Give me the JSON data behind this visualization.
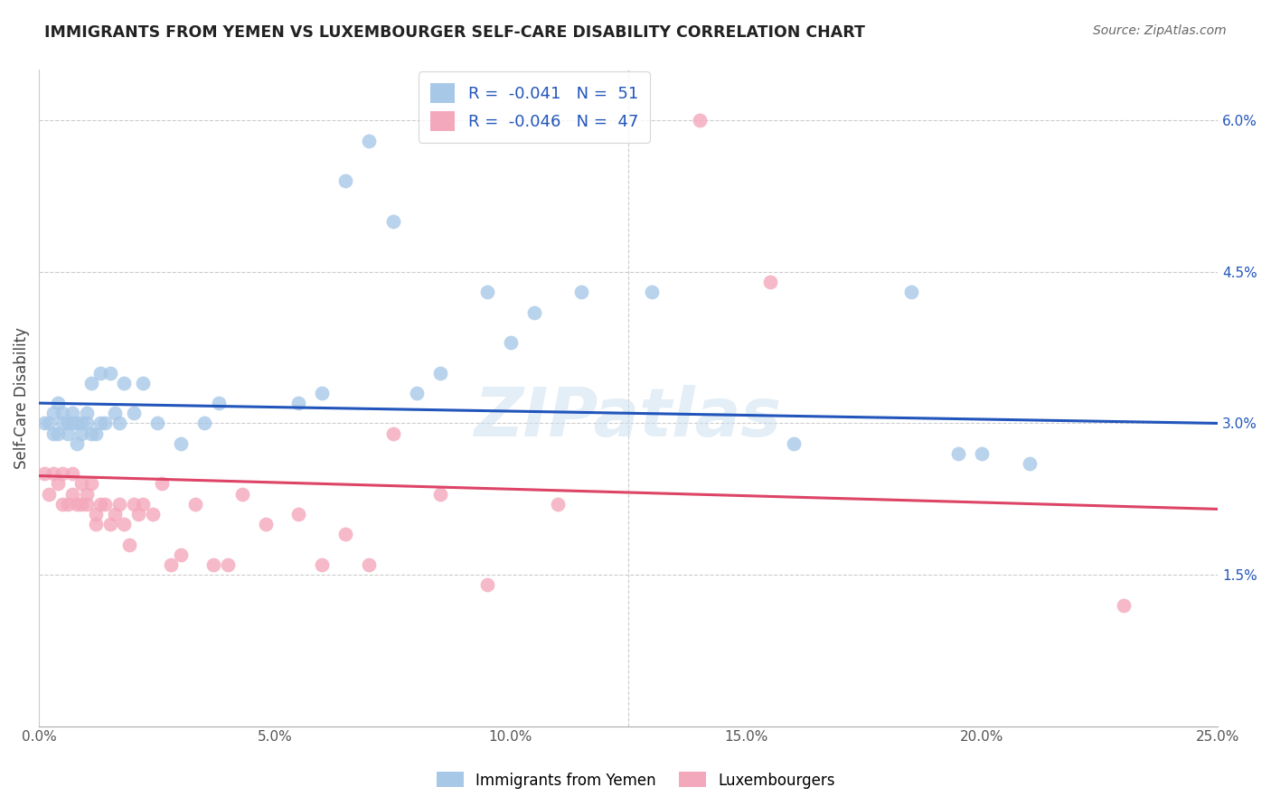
{
  "title": "IMMIGRANTS FROM YEMEN VS LUXEMBOURGER SELF-CARE DISABILITY CORRELATION CHART",
  "source": "Source: ZipAtlas.com",
  "xlabel_tick_vals": [
    0.0,
    0.05,
    0.1,
    0.15,
    0.2,
    0.25
  ],
  "ylabel": "Self-Care Disability",
  "ylabel_tick_vals": [
    0.0,
    0.015,
    0.03,
    0.045,
    0.06
  ],
  "xlim": [
    0.0,
    0.25
  ],
  "ylim": [
    0.0,
    0.065
  ],
  "right_ytick_vals": [
    0.015,
    0.03,
    0.045,
    0.06
  ],
  "right_ytick_labels": [
    "1.5%",
    "3.0%",
    "4.5%",
    "6.0%"
  ],
  "legend_r1_val": "-0.041",
  "legend_n1_val": "51",
  "legend_r2_val": "-0.046",
  "legend_n2_val": "47",
  "color_blue": "#a8c8e8",
  "color_pink": "#f4a8bc",
  "line_color_blue": "#2255bb",
  "line_color_pink": "#dd4466",
  "legend_text_color": "#2255bb",
  "blue_scatter_x": [
    0.001,
    0.002,
    0.003,
    0.003,
    0.004,
    0.004,
    0.005,
    0.005,
    0.006,
    0.006,
    0.007,
    0.007,
    0.008,
    0.008,
    0.009,
    0.009,
    0.01,
    0.01,
    0.011,
    0.011,
    0.012,
    0.013,
    0.013,
    0.014,
    0.015,
    0.016,
    0.017,
    0.018,
    0.02,
    0.022,
    0.025,
    0.03,
    0.035,
    0.038,
    0.055,
    0.06,
    0.065,
    0.07,
    0.075,
    0.08,
    0.085,
    0.095,
    0.1,
    0.105,
    0.115,
    0.13,
    0.16,
    0.185,
    0.195,
    0.2,
    0.21
  ],
  "blue_scatter_y": [
    0.03,
    0.03,
    0.031,
    0.029,
    0.032,
    0.029,
    0.03,
    0.031,
    0.029,
    0.03,
    0.03,
    0.031,
    0.028,
    0.03,
    0.029,
    0.03,
    0.03,
    0.031,
    0.029,
    0.034,
    0.029,
    0.03,
    0.035,
    0.03,
    0.035,
    0.031,
    0.03,
    0.034,
    0.031,
    0.034,
    0.03,
    0.028,
    0.03,
    0.032,
    0.032,
    0.033,
    0.054,
    0.058,
    0.05,
    0.033,
    0.035,
    0.043,
    0.038,
    0.041,
    0.043,
    0.043,
    0.028,
    0.043,
    0.027,
    0.027,
    0.026
  ],
  "pink_scatter_x": [
    0.001,
    0.002,
    0.003,
    0.004,
    0.005,
    0.005,
    0.006,
    0.007,
    0.007,
    0.008,
    0.009,
    0.009,
    0.01,
    0.01,
    0.011,
    0.012,
    0.012,
    0.013,
    0.014,
    0.015,
    0.016,
    0.017,
    0.018,
    0.019,
    0.02,
    0.021,
    0.022,
    0.024,
    0.026,
    0.028,
    0.03,
    0.033,
    0.037,
    0.04,
    0.043,
    0.048,
    0.055,
    0.06,
    0.065,
    0.07,
    0.075,
    0.085,
    0.095,
    0.11,
    0.14,
    0.155,
    0.23
  ],
  "pink_scatter_y": [
    0.025,
    0.023,
    0.025,
    0.024,
    0.022,
    0.025,
    0.022,
    0.025,
    0.023,
    0.022,
    0.024,
    0.022,
    0.023,
    0.022,
    0.024,
    0.021,
    0.02,
    0.022,
    0.022,
    0.02,
    0.021,
    0.022,
    0.02,
    0.018,
    0.022,
    0.021,
    0.022,
    0.021,
    0.024,
    0.016,
    0.017,
    0.022,
    0.016,
    0.016,
    0.023,
    0.02,
    0.021,
    0.016,
    0.019,
    0.016,
    0.029,
    0.023,
    0.014,
    0.022,
    0.06,
    0.044,
    0.012
  ],
  "blue_trend_x0": 0.0,
  "blue_trend_y0": 0.032,
  "blue_trend_x1": 0.25,
  "blue_trend_y1": 0.03,
  "pink_trend_x0": 0.0,
  "pink_trend_y0": 0.0248,
  "pink_trend_x1": 0.25,
  "pink_trend_y1": 0.0215,
  "watermark": "ZIPatlas",
  "legend_label_blue": "Immigrants from Yemen",
  "legend_label_pink": "Luxembourgers"
}
